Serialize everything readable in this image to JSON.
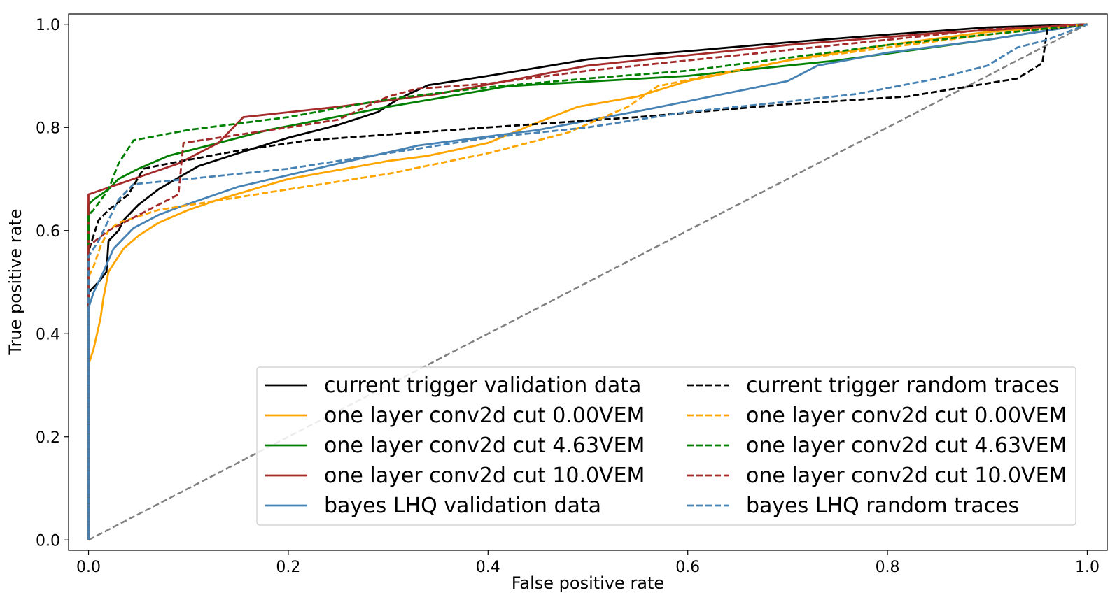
{
  "chart_data": {
    "type": "line",
    "title": "",
    "xlabel": "False positive rate",
    "ylabel": "True positive rate",
    "xlim": [
      -0.02,
      1.02
    ],
    "ylim": [
      -0.02,
      1.02
    ],
    "xticks": [
      0.0,
      0.2,
      0.4,
      0.6,
      0.8,
      1.0
    ],
    "yticks": [
      0.0,
      0.2,
      0.4,
      0.6,
      0.8,
      1.0
    ],
    "xtick_labels": [
      "0.0",
      "0.2",
      "0.4",
      "0.6",
      "0.8",
      "1.0"
    ],
    "ytick_labels": [
      "0.0",
      "0.2",
      "0.4",
      "0.6",
      "0.8",
      "1.0"
    ],
    "grid": false,
    "legend_position": "lower-right",
    "legend_columns": 2,
    "reference_line": {
      "style": "dashed",
      "color": "#808080",
      "points": [
        [
          0,
          0
        ],
        [
          1,
          1
        ]
      ]
    },
    "series": [
      {
        "name": "current trigger validation data",
        "color": "#000000",
        "style": "solid",
        "points": [
          [
            0,
            0
          ],
          [
            0,
            0.48
          ],
          [
            0.01,
            0.5
          ],
          [
            0.018,
            0.52
          ],
          [
            0.02,
            0.58
          ],
          [
            0.03,
            0.6
          ],
          [
            0.035,
            0.62
          ],
          [
            0.05,
            0.65
          ],
          [
            0.07,
            0.68
          ],
          [
            0.11,
            0.725
          ],
          [
            0.15,
            0.75
          ],
          [
            0.2,
            0.78
          ],
          [
            0.25,
            0.805
          ],
          [
            0.29,
            0.83
          ],
          [
            0.31,
            0.855
          ],
          [
            0.34,
            0.882
          ],
          [
            0.4,
            0.9
          ],
          [
            0.5,
            0.932
          ],
          [
            0.6,
            0.948
          ],
          [
            0.7,
            0.965
          ],
          [
            0.8,
            0.98
          ],
          [
            0.9,
            0.994
          ],
          [
            1.0,
            1.0
          ]
        ]
      },
      {
        "name": "one layer conv2d cut 0.00VEM",
        "color": "#FFA500",
        "style": "solid",
        "points": [
          [
            0,
            0
          ],
          [
            0,
            0.34
          ],
          [
            0.005,
            0.37
          ],
          [
            0.012,
            0.43
          ],
          [
            0.015,
            0.47
          ],
          [
            0.02,
            0.52
          ],
          [
            0.035,
            0.565
          ],
          [
            0.05,
            0.59
          ],
          [
            0.07,
            0.615
          ],
          [
            0.1,
            0.64
          ],
          [
            0.13,
            0.66
          ],
          [
            0.2,
            0.7
          ],
          [
            0.3,
            0.735
          ],
          [
            0.34,
            0.745
          ],
          [
            0.4,
            0.77
          ],
          [
            0.45,
            0.81
          ],
          [
            0.49,
            0.84
          ],
          [
            0.55,
            0.86
          ],
          [
            0.6,
            0.89
          ],
          [
            0.7,
            0.93
          ],
          [
            0.8,
            0.96
          ],
          [
            0.9,
            0.985
          ],
          [
            1.0,
            1.0
          ]
        ]
      },
      {
        "name": "one layer conv2d cut 4.63VEM",
        "color": "#008000",
        "style": "solid",
        "points": [
          [
            0,
            0
          ],
          [
            0,
            0.65
          ],
          [
            0.005,
            0.66
          ],
          [
            0.02,
            0.68
          ],
          [
            0.03,
            0.7
          ],
          [
            0.05,
            0.72
          ],
          [
            0.08,
            0.745
          ],
          [
            0.12,
            0.765
          ],
          [
            0.18,
            0.795
          ],
          [
            0.3,
            0.84
          ],
          [
            0.42,
            0.88
          ],
          [
            0.6,
            0.9
          ],
          [
            0.75,
            0.93
          ],
          [
            0.9,
            0.97
          ],
          [
            1.0,
            1.0
          ]
        ]
      },
      {
        "name": "one layer conv2d cut 10.0VEM",
        "color": "#A52A2A",
        "style": "solid",
        "points": [
          [
            0,
            0
          ],
          [
            0,
            0.67
          ],
          [
            0.03,
            0.69
          ],
          [
            0.06,
            0.71
          ],
          [
            0.09,
            0.73
          ],
          [
            0.13,
            0.77
          ],
          [
            0.155,
            0.82
          ],
          [
            0.25,
            0.84
          ],
          [
            0.35,
            0.865
          ],
          [
            0.5,
            0.92
          ],
          [
            0.7,
            0.96
          ],
          [
            0.85,
            0.983
          ],
          [
            1.0,
            1.0
          ]
        ]
      },
      {
        "name": "bayes LHQ validation data",
        "color": "#4682B4",
        "style": "solid",
        "points": [
          [
            0,
            0
          ],
          [
            0,
            0.45
          ],
          [
            0.005,
            0.48
          ],
          [
            0.015,
            0.52
          ],
          [
            0.025,
            0.565
          ],
          [
            0.045,
            0.605
          ],
          [
            0.07,
            0.63
          ],
          [
            0.09,
            0.645
          ],
          [
            0.15,
            0.685
          ],
          [
            0.25,
            0.73
          ],
          [
            0.33,
            0.765
          ],
          [
            0.45,
            0.795
          ],
          [
            0.56,
            0.835
          ],
          [
            0.7,
            0.89
          ],
          [
            0.73,
            0.92
          ],
          [
            0.8,
            0.945
          ],
          [
            0.9,
            0.97
          ],
          [
            1.0,
            1.0
          ]
        ]
      },
      {
        "name": "current trigger random traces",
        "color": "#000000",
        "style": "dashed",
        "points": [
          [
            0,
            0
          ],
          [
            0,
            0.56
          ],
          [
            0.01,
            0.62
          ],
          [
            0.02,
            0.64
          ],
          [
            0.04,
            0.67
          ],
          [
            0.055,
            0.72
          ],
          [
            0.08,
            0.73
          ],
          [
            0.15,
            0.755
          ],
          [
            0.22,
            0.775
          ],
          [
            0.4,
            0.8
          ],
          [
            0.55,
            0.82
          ],
          [
            0.7,
            0.845
          ],
          [
            0.82,
            0.86
          ],
          [
            0.93,
            0.895
          ],
          [
            0.955,
            0.925
          ],
          [
            0.96,
            0.99
          ],
          [
            1.0,
            1.0
          ]
        ]
      },
      {
        "name": "one layer conv2d cut 0.00VEM",
        "color": "#FFA500",
        "style": "dashed",
        "points": [
          [
            0,
            0
          ],
          [
            0,
            0.51
          ],
          [
            0.005,
            0.53
          ],
          [
            0.012,
            0.57
          ],
          [
            0.02,
            0.6
          ],
          [
            0.03,
            0.615
          ],
          [
            0.07,
            0.64
          ],
          [
            0.2,
            0.68
          ],
          [
            0.3,
            0.71
          ],
          [
            0.4,
            0.75
          ],
          [
            0.48,
            0.79
          ],
          [
            0.54,
            0.84
          ],
          [
            0.57,
            0.88
          ],
          [
            0.62,
            0.9
          ],
          [
            0.7,
            0.93
          ],
          [
            0.8,
            0.955
          ],
          [
            0.9,
            0.98
          ],
          [
            1.0,
            1.0
          ]
        ]
      },
      {
        "name": "one layer conv2d cut 4.63VEM",
        "color": "#008000",
        "style": "dashed",
        "points": [
          [
            0,
            0
          ],
          [
            0,
            0.63
          ],
          [
            0.005,
            0.64
          ],
          [
            0.02,
            0.68
          ],
          [
            0.03,
            0.73
          ],
          [
            0.045,
            0.775
          ],
          [
            0.1,
            0.795
          ],
          [
            0.2,
            0.82
          ],
          [
            0.3,
            0.855
          ],
          [
            0.4,
            0.878
          ],
          [
            0.5,
            0.895
          ],
          [
            0.6,
            0.91
          ],
          [
            0.7,
            0.935
          ],
          [
            0.8,
            0.96
          ],
          [
            0.9,
            0.98
          ],
          [
            1.0,
            1.0
          ]
        ]
      },
      {
        "name": "one layer conv2d cut 10.0VEM",
        "color": "#A52A2A",
        "style": "dashed",
        "points": [
          [
            0,
            0
          ],
          [
            0,
            0.57
          ],
          [
            0.02,
            0.6
          ],
          [
            0.05,
            0.63
          ],
          [
            0.09,
            0.67
          ],
          [
            0.095,
            0.77
          ],
          [
            0.2,
            0.8
          ],
          [
            0.25,
            0.815
          ],
          [
            0.3,
            0.86
          ],
          [
            0.33,
            0.875
          ],
          [
            0.4,
            0.885
          ],
          [
            0.5,
            0.91
          ],
          [
            0.6,
            0.93
          ],
          [
            0.7,
            0.95
          ],
          [
            0.8,
            0.97
          ],
          [
            0.9,
            0.99
          ],
          [
            1.0,
            1.0
          ]
        ]
      },
      {
        "name": "bayes LHQ random traces",
        "color": "#4682B4",
        "style": "dashed",
        "points": [
          [
            0,
            0
          ],
          [
            0,
            0.55
          ],
          [
            0.01,
            0.58
          ],
          [
            0.02,
            0.62
          ],
          [
            0.03,
            0.66
          ],
          [
            0.045,
            0.69
          ],
          [
            0.1,
            0.7
          ],
          [
            0.2,
            0.72
          ],
          [
            0.3,
            0.75
          ],
          [
            0.4,
            0.78
          ],
          [
            0.5,
            0.8
          ],
          [
            0.6,
            0.83
          ],
          [
            0.7,
            0.85
          ],
          [
            0.77,
            0.865
          ],
          [
            0.85,
            0.895
          ],
          [
            0.9,
            0.92
          ],
          [
            0.93,
            0.955
          ],
          [
            0.96,
            0.97
          ],
          [
            1.0,
            1.0
          ]
        ]
      }
    ]
  }
}
